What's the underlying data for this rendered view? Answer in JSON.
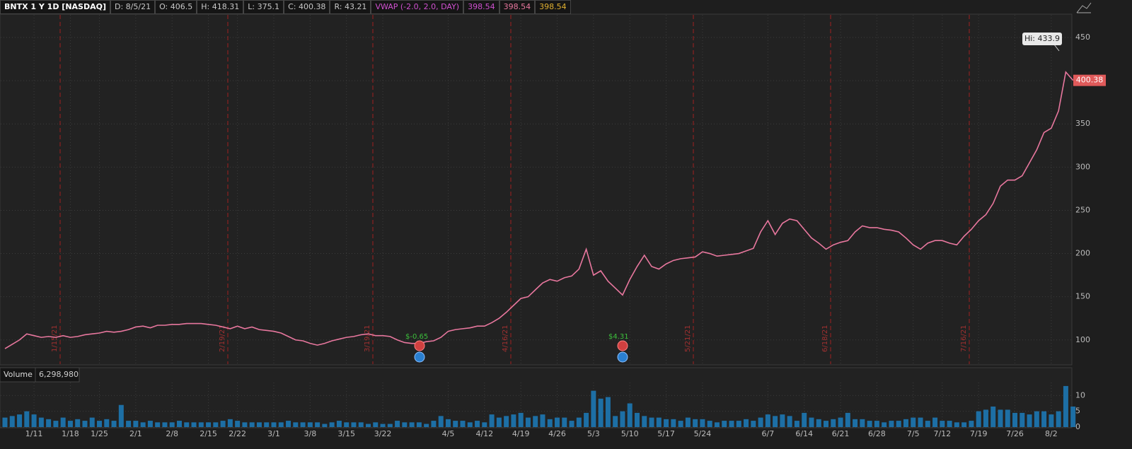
{
  "header": {
    "symbol": "BNTX 1 Y 1D [NASDAQ]",
    "fields": [
      "D: 8/5/21",
      "O: 406.5",
      "H: 418.31",
      "L: 375.1",
      "C: 400.38",
      "R: 43.21"
    ],
    "study": "VWAP (-2.0, 2.0, DAY)",
    "study_values": [
      "398.54",
      "398.54",
      "398.54"
    ]
  },
  "chart_data": [
    {
      "type": "line",
      "color": "#e8779e",
      "values": [
        90,
        95,
        100,
        107,
        105,
        103,
        104,
        103,
        105,
        103,
        104,
        106,
        107,
        108,
        110,
        109,
        110,
        112,
        115,
        116,
        114,
        117,
        117,
        118,
        118,
        119,
        119,
        119,
        118,
        117,
        115,
        113,
        116,
        113,
        115,
        112,
        111,
        110,
        108,
        104,
        100,
        99,
        96,
        94,
        96,
        99,
        101,
        103,
        104,
        106,
        107,
        105,
        105,
        104,
        100,
        97,
        96,
        96,
        98,
        99,
        103,
        110,
        112,
        113,
        114,
        116,
        116,
        120,
        125,
        132,
        140,
        148,
        150,
        158,
        166,
        170,
        168,
        172,
        174,
        182,
        205,
        175,
        180,
        168,
        160,
        152,
        170,
        185,
        198,
        185,
        182,
        188,
        192,
        194,
        195,
        196,
        202,
        200,
        197,
        198,
        199,
        200,
        203,
        206,
        225,
        238,
        222,
        235,
        240,
        238,
        228,
        218,
        212,
        205,
        210,
        213,
        215,
        225,
        232,
        230,
        230,
        228,
        227,
        225,
        218,
        210,
        205,
        212,
        215,
        215,
        212,
        210,
        220,
        228,
        238,
        245,
        258,
        278,
        285,
        285,
        290,
        305,
        320,
        340,
        345,
        365,
        410,
        400.38
      ],
      "ylim": [
        72,
        477
      ],
      "yticks": [
        100,
        150,
        200,
        250,
        300,
        350,
        400,
        450
      ],
      "grid": true,
      "high_label": "Hi: 433.9",
      "last_label": "400.38",
      "expirations": [
        "1/15/21",
        "2/19/21",
        "3/19/21",
        "4/16/21",
        "5/21/21",
        "6/18/21",
        "7/16/21"
      ],
      "earnings": [
        "$-0.65",
        "$4.31"
      ]
    },
    {
      "type": "bar",
      "title": "Volume",
      "subtitle": "6,298,980",
      "color": "#1d6fa5",
      "categories": [
        null,
        null,
        null,
        null,
        "1/11",
        null,
        null,
        null,
        null,
        "1/18",
        null,
        null,
        null,
        "1/25",
        null,
        null,
        null,
        null,
        "2/1",
        null,
        null,
        null,
        null,
        "2/8",
        null,
        null,
        null,
        null,
        "2/15",
        null,
        null,
        null,
        "2/22",
        null,
        null,
        null,
        null,
        "3/1",
        null,
        null,
        null,
        null,
        "3/8",
        null,
        null,
        null,
        null,
        "3/15",
        null,
        null,
        null,
        null,
        "3/22",
        null,
        null,
        null,
        null,
        null,
        null,
        null,
        null,
        "4/5",
        null,
        null,
        null,
        null,
        "4/12",
        null,
        null,
        null,
        null,
        "4/19",
        null,
        null,
        null,
        null,
        "4/26",
        null,
        null,
        null,
        null,
        "5/3",
        null,
        null,
        null,
        null,
        "5/10",
        null,
        null,
        null,
        null,
        "5/17",
        null,
        null,
        null,
        null,
        "5/24",
        null,
        null,
        null,
        null,
        null,
        null,
        null,
        null,
        "6/7",
        null,
        null,
        null,
        null,
        "6/14",
        null,
        null,
        null,
        null,
        "6/21",
        null,
        null,
        null,
        null,
        "6/28",
        null,
        null,
        null,
        null,
        "7/5",
        null,
        null,
        null,
        "7/12",
        null,
        null,
        null,
        null,
        "7/19",
        null,
        null,
        null,
        null,
        "7/26",
        null,
        null,
        null,
        null,
        "8/2",
        null,
        null,
        null
      ],
      "values": [
        3,
        3.5,
        4,
        5,
        4,
        3,
        2.5,
        2,
        3,
        2,
        2.5,
        2,
        3,
        2,
        2.5,
        2,
        7,
        2,
        2,
        1.5,
        2,
        1.5,
        1.5,
        1.5,
        2,
        1.5,
        1.5,
        1.5,
        1.5,
        1.5,
        2,
        2.5,
        2,
        1.5,
        1.5,
        1.5,
        1.5,
        1.5,
        1.5,
        2,
        1.5,
        1.5,
        1.5,
        1.5,
        1,
        1.5,
        2,
        1.5,
        1.5,
        1.5,
        1,
        1.5,
        1,
        1,
        2,
        1.5,
        1.5,
        1.5,
        1,
        2,
        3.5,
        2.5,
        2,
        2,
        1.5,
        2,
        1.5,
        4,
        3,
        3.5,
        4,
        4.5,
        3,
        3.5,
        4,
        2.5,
        3,
        3,
        2,
        3,
        4.5,
        11.5,
        9,
        9.5,
        3.5,
        5,
        7.5,
        4.5,
        3.5,
        3,
        3,
        2.5,
        2.5,
        2,
        3,
        2.5,
        2.5,
        2,
        1.5,
        2,
        2,
        2,
        2.5,
        2,
        3,
        4,
        3.5,
        4,
        3.5,
        2,
        4.5,
        3,
        2.5,
        2,
        2.5,
        3,
        4.5,
        2.5,
        2.5,
        2,
        2,
        1.5,
        2,
        2,
        2.5,
        3,
        3,
        2,
        3,
        2,
        2,
        1.5,
        1.5,
        2,
        5,
        5.5,
        6.5,
        5.5,
        5.5,
        4.5,
        4.5,
        4,
        5,
        5,
        4,
        5,
        13,
        6.5
      ],
      "ylim": [
        0,
        14.1
      ],
      "yticks": [
        0,
        5,
        10
      ],
      "grid": true
    }
  ]
}
